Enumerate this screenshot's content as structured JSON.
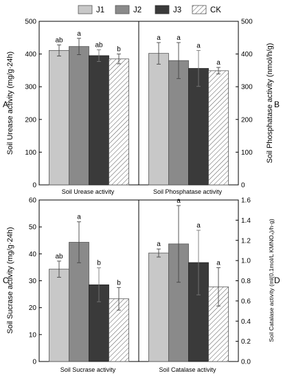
{
  "legend": [
    "J1",
    "J2",
    "J3",
    "CK"
  ],
  "colors": {
    "J1": "#c8c8c8",
    "J2": "#8a8a8a",
    "J3": "#3a3a3a",
    "CK": "hatched"
  },
  "chart_data": [
    {
      "panel": "A",
      "type": "bar",
      "categories": [
        "Soil Urease activity"
      ],
      "series": [
        {
          "name": "J1",
          "values": [
            411
          ],
          "errors": [
            17
          ],
          "labels": [
            "ab"
          ]
        },
        {
          "name": "J2",
          "values": [
            423
          ],
          "errors": [
            25
          ],
          "labels": [
            "a"
          ]
        },
        {
          "name": "J3",
          "values": [
            395
          ],
          "errors": [
            18
          ],
          "labels": [
            "ab"
          ]
        },
        {
          "name": "CK",
          "values": [
            385
          ],
          "errors": [
            15
          ],
          "labels": [
            "b"
          ]
        }
      ],
      "ylabel": "Soil Urease activity (mg/g·24h)",
      "ylim": [
        0,
        500
      ],
      "yticks": [
        0,
        100,
        200,
        300,
        400,
        500
      ]
    },
    {
      "panel": "B",
      "type": "bar",
      "categories": [
        "Soil Phosphatase activity"
      ],
      "series": [
        {
          "name": "J1",
          "values": [
            402
          ],
          "errors": [
            33
          ],
          "labels": [
            "a"
          ]
        },
        {
          "name": "J2",
          "values": [
            380
          ],
          "errors": [
            55
          ],
          "labels": [
            "a"
          ]
        },
        {
          "name": "J3",
          "values": [
            356
          ],
          "errors": [
            55
          ],
          "labels": [
            "a"
          ]
        },
        {
          "name": "CK",
          "values": [
            349
          ],
          "errors": [
            10
          ],
          "labels": [
            "a"
          ]
        }
      ],
      "ylabel": "Soil Phosphatase activity (nmol/h/g)",
      "ylim": [
        0,
        500
      ],
      "yticks": [
        0,
        100,
        200,
        300,
        400,
        500
      ]
    },
    {
      "panel": "C",
      "type": "bar",
      "categories": [
        "Soil Sucrase activity"
      ],
      "series": [
        {
          "name": "J1",
          "values": [
            34.3
          ],
          "errors": [
            3.0
          ],
          "labels": [
            "ab"
          ]
        },
        {
          "name": "J2",
          "values": [
            44.3
          ],
          "errors": [
            7.6
          ],
          "labels": [
            "a"
          ]
        },
        {
          "name": "J3",
          "values": [
            28.5
          ],
          "errors": [
            6.3
          ],
          "labels": [
            "b"
          ]
        },
        {
          "name": "CK",
          "values": [
            23.3
          ],
          "errors": [
            4.2
          ],
          "labels": [
            "b"
          ]
        }
      ],
      "ylabel": "Soil Sucrase activity (mg/g·24h)",
      "ylim": [
        0,
        60
      ],
      "yticks": [
        0,
        10,
        20,
        30,
        40,
        50,
        60
      ]
    },
    {
      "panel": "D",
      "type": "bar",
      "categories": [
        "Soil Catalase activity"
      ],
      "series": [
        {
          "name": "J1",
          "values": [
            1.075
          ],
          "errors": [
            0.04
          ],
          "labels": [
            "a"
          ]
        },
        {
          "name": "J2",
          "values": [
            1.165
          ],
          "errors": [
            0.38
          ],
          "labels": [
            "a"
          ]
        },
        {
          "name": "J3",
          "values": [
            0.98
          ],
          "errors": [
            0.32
          ],
          "labels": [
            "a"
          ]
        },
        {
          "name": "CK",
          "values": [
            0.74
          ],
          "errors": [
            0.19
          ],
          "labels": [
            "a"
          ]
        }
      ],
      "ylabel": "Soil Catalase activity (ml(0.1mol/L KMNO₄)/h·g)",
      "ylim": [
        0,
        1.6
      ],
      "yticks": [
        0.0,
        0.2,
        0.4,
        0.6,
        0.8,
        1.0,
        1.2,
        1.4,
        1.6
      ]
    }
  ]
}
